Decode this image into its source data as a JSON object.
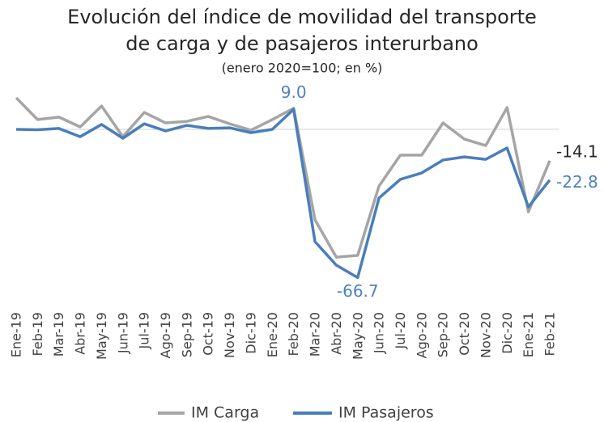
{
  "chart_data": {
    "type": "line",
    "title": "Evolución del índice de movilidad del transporte",
    "title_line2": "de carga y de pasajeros interurbano",
    "subtitle": "(enero 2020=100; en %)",
    "categories": [
      "Ene-19",
      "Feb-19",
      "Mar-19",
      "Abr-19",
      "May-19",
      "Jun-19",
      "Jul-19",
      "Ago-19",
      "Sep-19",
      "Oct-19",
      "Nov-19",
      "Dic-19",
      "Ene-20",
      "Feb-20",
      "Mar-20",
      "Abr-20",
      "May-20",
      "Jun-20",
      "Jul-20",
      "Ago-20",
      "Sep-20",
      "Oct-20",
      "Nov-20",
      "Dic-20",
      "Ene-21",
      "Feb-21"
    ],
    "series": [
      {
        "name": "IM Carga",
        "color": "#a5a5a5",
        "values": [
          14.2,
          4.4,
          5.5,
          1.1,
          10.5,
          -3.3,
          7.6,
          2.9,
          3.6,
          5.8,
          2.5,
          -0.4,
          4.4,
          9.5,
          -40.7,
          -57.5,
          -56.7,
          -25.5,
          -11.6,
          -11.6,
          2.9,
          -4.4,
          -7.3,
          9.8,
          -37.1,
          -14.1
        ],
        "value_labels": [
          null,
          null,
          null,
          null,
          null,
          null,
          null,
          null,
          null,
          null,
          null,
          null,
          null,
          null,
          null,
          null,
          null,
          null,
          null,
          null,
          null,
          null,
          null,
          null,
          null,
          "-14.1"
        ],
        "label_color": "#262626"
      },
      {
        "name": "IM Pasajeros",
        "color": "#4a7ebb",
        "values": [
          0,
          -0.2,
          0.4,
          -3.3,
          2.2,
          -4.0,
          2.5,
          -0.7,
          1.8,
          0.4,
          0.7,
          -1.5,
          0,
          9.0,
          -50.5,
          -61.1,
          -66.7,
          -30.9,
          -22.5,
          -19.6,
          -13.8,
          -12.4,
          -13.5,
          -8.4,
          -34.9,
          -22.8
        ],
        "value_labels": [
          null,
          null,
          null,
          null,
          null,
          null,
          null,
          null,
          null,
          null,
          null,
          null,
          null,
          "9.0",
          null,
          null,
          "-66.7",
          null,
          null,
          null,
          null,
          null,
          null,
          null,
          null,
          "-22.8"
        ],
        "label_color": "#4f81bd"
      }
    ],
    "ylim": [
      -70,
      20
    ]
  }
}
